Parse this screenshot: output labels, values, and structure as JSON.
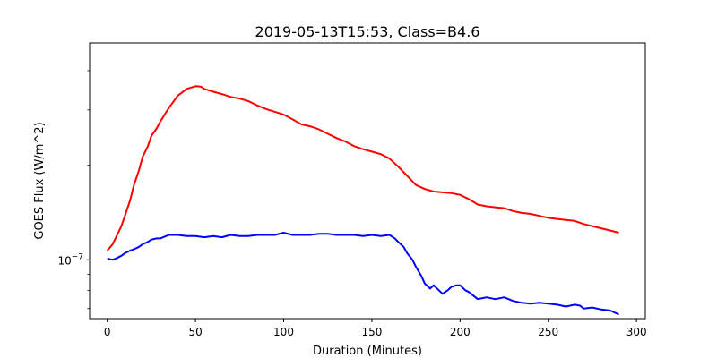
{
  "chart_data": {
    "type": "line",
    "title": "2019-05-13T15:53, Class=B4.6",
    "xlabel": "Duration (Minutes)",
    "ylabel": "GOES Flux (W/m^2)",
    "xlim": [
      -10,
      305
    ],
    "xticks": [
      0,
      50,
      100,
      150,
      200,
      250,
      300
    ],
    "xtick_labels": [
      "0",
      "50",
      "100",
      "150",
      "200",
      "250",
      "300"
    ],
    "yscale": "log",
    "ylim": [
      6.5e-08,
      4.9e-07
    ],
    "yticks": [
      1e-07
    ],
    "ytick_labels": [
      "10^-7"
    ],
    "y_minor_ticks": [
      7e-08,
      8e-08,
      9e-08,
      2e-07,
      3e-07,
      4e-07
    ],
    "grid": false,
    "series": [
      {
        "color": "#ff0000",
        "x": [
          0,
          3,
          5,
          8,
          10,
          13,
          15,
          18,
          20,
          23,
          25,
          28,
          30,
          35,
          40,
          45,
          50,
          53,
          55,
          60,
          65,
          70,
          75,
          80,
          85,
          90,
          95,
          100,
          105,
          110,
          115,
          120,
          125,
          130,
          135,
          140,
          145,
          150,
          155,
          160,
          165,
          170,
          175,
          180,
          185,
          190,
          195,
          200,
          205,
          210,
          215,
          220,
          225,
          230,
          235,
          240,
          245,
          250,
          255,
          260,
          265,
          270,
          275,
          280,
          285,
          290
        ],
        "y": [
          1.07e-07,
          1.12e-07,
          1.18e-07,
          1.28e-07,
          1.38e-07,
          1.55e-07,
          1.72e-07,
          1.93e-07,
          2.12e-07,
          2.3e-07,
          2.48e-07,
          2.62e-07,
          2.75e-07,
          3.05e-07,
          3.33e-07,
          3.5e-07,
          3.57e-07,
          3.56e-07,
          3.5e-07,
          3.43e-07,
          3.37e-07,
          3.3e-07,
          3.26e-07,
          3.2e-07,
          3.1e-07,
          3.02e-07,
          2.96e-07,
          2.9e-07,
          2.8e-07,
          2.7e-07,
          2.66e-07,
          2.6e-07,
          2.52e-07,
          2.44e-07,
          2.38e-07,
          2.3e-07,
          2.25e-07,
          2.21e-07,
          2.17e-07,
          2.1e-07,
          1.98e-07,
          1.85e-07,
          1.73e-07,
          1.68e-07,
          1.65e-07,
          1.64e-07,
          1.63e-07,
          1.61e-07,
          1.56e-07,
          1.5e-07,
          1.48e-07,
          1.47e-07,
          1.46e-07,
          1.43e-07,
          1.41e-07,
          1.4e-07,
          1.38e-07,
          1.36e-07,
          1.35e-07,
          1.34e-07,
          1.33e-07,
          1.3e-07,
          1.28e-07,
          1.26e-07,
          1.24e-07,
          1.22e-07
        ]
      },
      {
        "color": "#0000ff",
        "x": [
          0,
          3,
          5,
          8,
          10,
          13,
          15,
          18,
          20,
          23,
          25,
          28,
          30,
          35,
          40,
          45,
          50,
          55,
          60,
          65,
          70,
          75,
          80,
          85,
          90,
          95,
          100,
          105,
          110,
          115,
          120,
          125,
          130,
          135,
          140,
          145,
          150,
          155,
          160,
          163,
          165,
          168,
          170,
          173,
          175,
          178,
          180,
          183,
          185,
          188,
          190,
          193,
          195,
          198,
          200,
          203,
          205,
          210,
          215,
          220,
          225,
          230,
          235,
          240,
          245,
          250,
          255,
          260,
          265,
          268,
          270,
          275,
          280,
          285,
          290
        ],
        "y": [
          1.01e-07,
          1e-07,
          1.01e-07,
          1.03e-07,
          1.05e-07,
          1.07e-07,
          1.08e-07,
          1.1e-07,
          1.12e-07,
          1.14e-07,
          1.16e-07,
          1.17e-07,
          1.17e-07,
          1.2e-07,
          1.2e-07,
          1.19e-07,
          1.19e-07,
          1.18e-07,
          1.19e-07,
          1.18e-07,
          1.2e-07,
          1.19e-07,
          1.19e-07,
          1.2e-07,
          1.2e-07,
          1.2e-07,
          1.22e-07,
          1.2e-07,
          1.2e-07,
          1.2e-07,
          1.21e-07,
          1.21e-07,
          1.2e-07,
          1.2e-07,
          1.2e-07,
          1.19e-07,
          1.2e-07,
          1.19e-07,
          1.2e-07,
          1.17e-07,
          1.14e-07,
          1.1e-07,
          1.05e-07,
          1e-07,
          9.5e-08,
          8.9e-08,
          8.4e-08,
          8.1e-08,
          8.3e-08,
          8e-08,
          7.8e-08,
          8e-08,
          8.2e-08,
          8.3e-08,
          8.3e-08,
          8e-08,
          7.9e-08,
          7.5e-08,
          7.6e-08,
          7.5e-08,
          7.6e-08,
          7.4e-08,
          7.3e-08,
          7.25e-08,
          7.3e-08,
          7.25e-08,
          7.2e-08,
          7.1e-08,
          7.2e-08,
          7.15e-08,
          7e-08,
          7.05e-08,
          6.95e-08,
          6.9e-08,
          6.7e-08
        ]
      }
    ]
  }
}
